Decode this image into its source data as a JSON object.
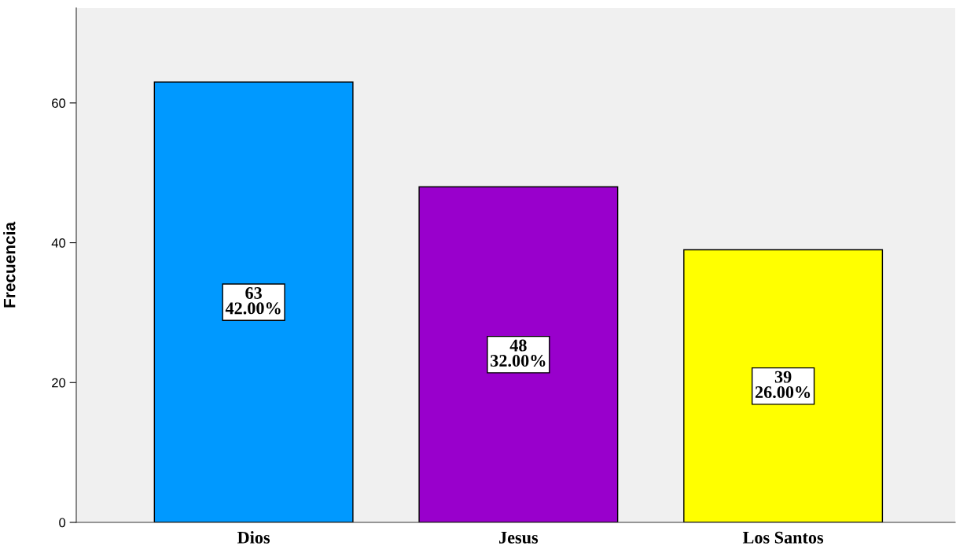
{
  "chart_data": {
    "type": "bar",
    "ylabel": "Frecuencia",
    "categories": [
      "Dios",
      "Jesus",
      "Los Santos"
    ],
    "values": [
      63,
      48,
      39
    ],
    "colors": [
      "#0099ff",
      "#9900cc",
      "#ffff00"
    ],
    "value_labels": [
      "63\n42.00%",
      "48\n32.00%",
      "39\n26.00%"
    ],
    "ylim": [
      0,
      73.6
    ],
    "yticks": [
      0,
      20,
      40,
      60
    ],
    "grid": false,
    "legend": false
  }
}
